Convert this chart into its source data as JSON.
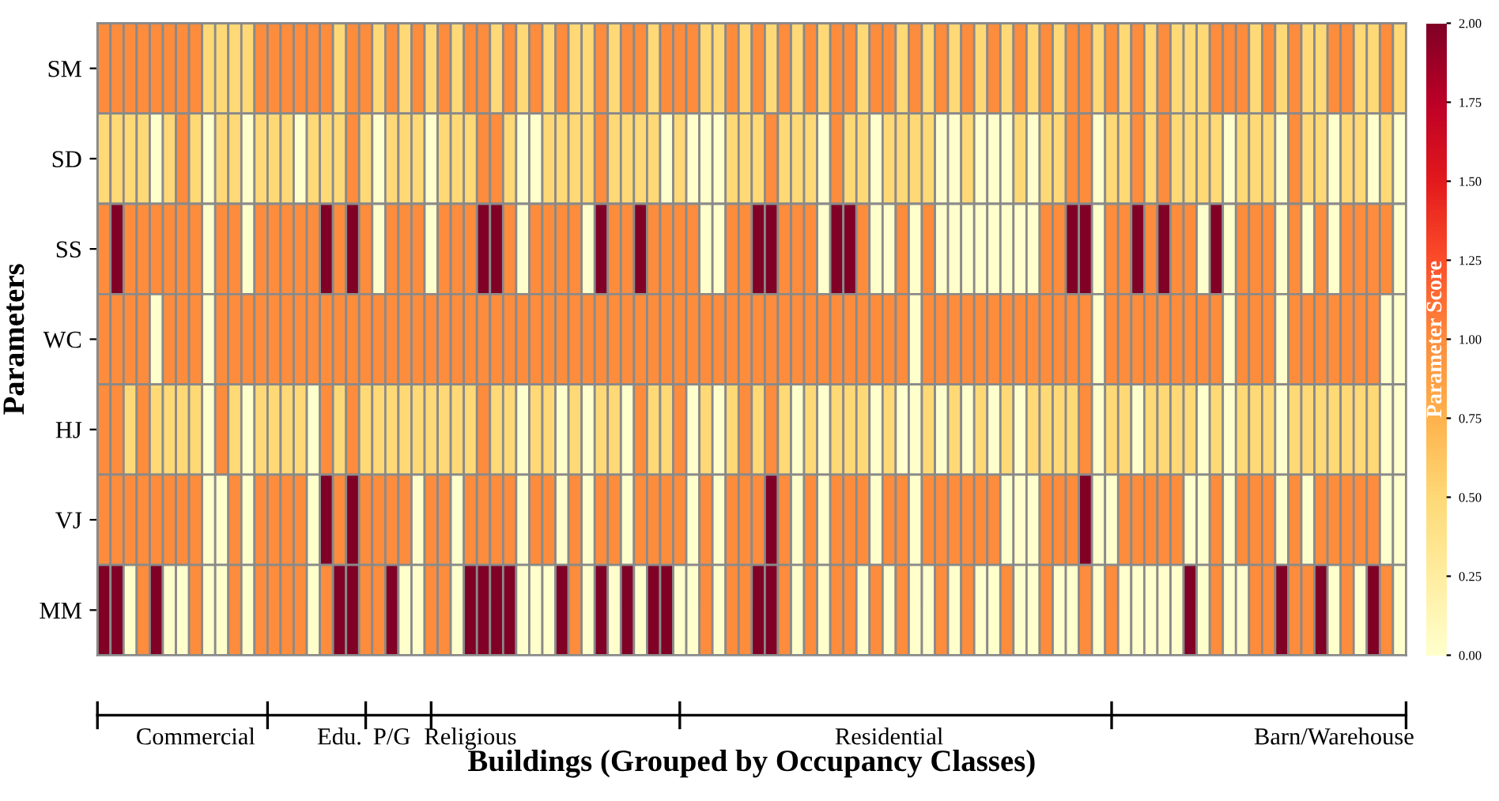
{
  "chart_data": {
    "type": "heatmap",
    "xlabel": "Buildings (Grouped by Occupancy Classes)",
    "ylabel": "Parameters",
    "clabel": "Parameter Score",
    "categories": [
      null,
      null,
      null,
      null,
      null,
      null,
      null,
      "Commercial",
      null,
      null,
      null,
      null,
      null,
      null,
      null,
      null,
      null,
      null,
      "Edu.",
      null,
      null,
      null,
      "P/G",
      null,
      null,
      null,
      null,
      null,
      "Religious",
      null,
      null,
      null,
      null,
      null,
      null,
      null,
      null,
      null,
      null,
      null,
      null,
      null,
      null,
      null,
      null,
      null,
      null,
      null,
      null,
      null,
      null,
      null,
      null,
      null,
      null,
      null,
      null,
      null,
      null,
      null,
      "Residential",
      null,
      null,
      null,
      null,
      null,
      null,
      null,
      null,
      null,
      null,
      null,
      null,
      null,
      null,
      null,
      null,
      null,
      null,
      null,
      null,
      null,
      null,
      null,
      null,
      null,
      null,
      null,
      null,
      null,
      null,
      null,
      null,
      null,
      "Barn/Warehouse",
      null,
      null,
      null,
      null,
      null
    ],
    "y_categories": [
      "SM",
      "SD",
      "SS",
      "WC",
      "HJ",
      "VJ",
      "MM"
    ],
    "cells": [
      [
        1,
        1,
        1,
        1,
        1,
        1,
        1,
        1,
        0.5,
        0.5,
        0.5,
        0.5,
        1,
        1,
        1,
        1,
        1,
        1,
        0.5,
        1,
        1,
        0.5,
        1,
        0.5,
        1,
        0.5,
        1,
        0.5,
        1,
        1,
        0.5,
        1,
        0.5,
        1,
        0.5,
        1,
        0.5,
        0.5,
        1,
        0.5,
        1,
        1,
        0.5,
        1,
        1,
        1,
        0.5,
        0.5,
        1,
        0.5,
        1,
        0.5,
        1,
        0.5,
        1,
        0.5,
        1,
        1,
        0.5,
        1,
        1,
        0.5,
        1,
        0.5,
        1,
        0.5,
        1,
        0.5,
        1,
        0.5,
        1,
        0.5,
        1,
        0.5,
        1,
        1,
        0.5,
        1,
        0.5,
        1,
        0.5,
        1,
        0.5,
        0.5,
        0.5,
        1,
        1,
        1,
        0.5,
        1,
        0.5,
        1,
        0.5,
        0.5,
        1,
        1,
        0.5,
        0.5,
        1,
        0.5
      ],
      [
        0.5,
        0.5,
        0.5,
        0.5,
        0,
        0.5,
        1,
        0.5,
        0,
        0.5,
        0.5,
        0,
        0.5,
        0.5,
        0.5,
        0,
        0.5,
        0.5,
        0.5,
        1,
        0.5,
        0,
        0.5,
        0.5,
        0.5,
        0,
        0.5,
        0.5,
        0.5,
        1,
        1,
        0.5,
        0,
        0,
        0.5,
        0.5,
        0.5,
        0.5,
        1,
        0.5,
        0.5,
        0.5,
        0.5,
        0,
        0.5,
        0,
        0,
        0,
        0.5,
        0.5,
        0.5,
        1,
        0.5,
        0.5,
        0.5,
        0,
        1,
        0.5,
        0.5,
        0,
        0.5,
        0.5,
        0.5,
        0.5,
        0,
        0,
        0.5,
        0,
        0,
        0,
        0.5,
        0,
        0.5,
        0.5,
        1,
        1,
        0,
        0.5,
        0.5,
        1,
        0.5,
        1,
        0.5,
        0.5,
        0.5,
        0.5,
        0,
        0.5,
        0.5,
        0.5,
        0,
        1,
        0.5,
        0.5,
        0,
        0.5,
        0.5,
        0,
        0.5,
        0
      ],
      [
        1,
        2,
        1,
        1,
        1,
        1,
        1,
        1,
        0,
        1,
        1,
        0,
        1,
        1,
        1,
        1,
        1,
        2,
        1,
        2,
        1,
        0,
        1,
        1,
        1,
        0,
        1,
        1,
        1,
        2,
        2,
        1,
        0,
        1,
        1,
        1,
        1,
        0,
        2,
        1,
        1,
        2,
        1,
        1,
        1,
        1,
        0,
        0,
        1,
        1,
        2,
        2,
        1,
        1,
        1,
        0,
        2,
        2,
        1,
        0,
        0,
        1,
        0,
        1,
        0,
        0,
        0,
        0,
        0,
        0,
        0,
        0,
        1,
        1,
        2,
        2,
        0,
        1,
        1,
        2,
        1,
        2,
        1,
        1,
        0,
        2,
        0,
        1,
        1,
        1,
        0,
        1,
        0,
        1,
        0,
        1,
        1,
        1,
        1,
        0
      ],
      [
        1,
        1,
        1,
        1,
        0,
        1,
        1,
        1,
        0,
        1,
        1,
        1,
        1,
        1,
        1,
        1,
        1,
        1,
        1,
        1,
        1,
        1,
        1,
        1,
        1,
        1,
        1,
        1,
        1,
        1,
        1,
        1,
        1,
        1,
        1,
        1,
        1,
        1,
        1,
        1,
        1,
        1,
        1,
        1,
        1,
        1,
        1,
        1,
        1,
        1,
        1,
        1,
        1,
        1,
        1,
        1,
        1,
        1,
        1,
        1,
        1,
        1,
        0,
        1,
        1,
        1,
        1,
        1,
        1,
        1,
        1,
        1,
        1,
        1,
        1,
        1,
        0,
        1,
        1,
        1,
        1,
        1,
        1,
        1,
        1,
        1,
        0,
        1,
        1,
        1,
        0,
        1,
        1,
        1,
        1,
        1,
        1,
        1,
        0,
        0
      ],
      [
        1,
        1,
        0.5,
        1,
        0.5,
        0.5,
        0.5,
        0.5,
        0,
        1,
        0.5,
        0,
        0.5,
        0.5,
        0.5,
        0.5,
        0,
        1,
        0.5,
        1,
        0.5,
        0.5,
        0.5,
        0.5,
        0.5,
        0.5,
        0.5,
        0.5,
        0.5,
        1,
        0.5,
        0.5,
        0,
        0.5,
        0.5,
        0,
        0.5,
        0,
        0.5,
        0.5,
        0,
        1,
        0.5,
        0.5,
        1,
        0,
        0.5,
        0,
        0.5,
        1,
        0.5,
        1,
        0.5,
        0,
        0.5,
        0,
        0.5,
        0.5,
        0.5,
        0,
        0.5,
        0,
        0,
        0.5,
        0,
        0.5,
        0,
        0.5,
        0,
        0.5,
        0,
        0.5,
        0.5,
        0.5,
        0.5,
        1,
        0,
        0.5,
        0.5,
        0,
        0.5,
        0.5,
        0.5,
        0.5,
        0,
        0.5,
        0,
        0.5,
        0.5,
        0.5,
        0,
        0.5,
        0.5,
        0.5,
        0.5,
        0.5,
        0.5,
        0.5,
        0,
        0
      ],
      [
        1,
        1,
        1,
        1,
        1,
        1,
        1,
        1,
        0,
        0,
        1,
        0,
        1,
        1,
        1,
        1,
        0,
        2,
        1,
        2,
        1,
        1,
        1,
        1,
        0,
        1,
        1,
        0,
        1,
        1,
        1,
        1,
        0,
        1,
        1,
        0,
        1,
        0,
        1,
        1,
        0,
        1,
        1,
        1,
        1,
        0,
        1,
        0,
        1,
        1,
        1,
        2,
        1,
        0,
        1,
        0,
        1,
        1,
        1,
        0,
        1,
        1,
        0,
        1,
        1,
        1,
        1,
        1,
        1,
        0,
        0,
        0,
        1,
        1,
        1,
        2,
        0,
        0,
        1,
        1,
        1,
        1,
        1,
        0,
        0,
        1,
        0,
        1,
        1,
        1,
        0,
        1,
        0,
        1,
        1,
        1,
        1,
        1,
        0,
        0
      ],
      [
        2,
        2,
        0,
        1,
        2,
        0,
        0,
        1,
        0,
        0,
        1,
        0,
        1,
        1,
        1,
        1,
        0,
        1,
        2,
        2,
        1,
        1,
        2,
        0,
        0,
        1,
        1,
        0,
        2,
        2,
        2,
        2,
        0,
        0,
        0,
        2,
        1,
        0,
        2,
        0,
        2,
        0,
        2,
        2,
        0,
        0,
        1,
        0,
        1,
        1,
        2,
        2,
        1,
        0,
        1,
        0,
        1,
        1,
        0,
        1,
        0,
        1,
        0,
        0,
        1,
        0,
        1,
        0,
        0,
        1,
        0,
        0,
        1,
        0,
        0,
        1,
        0,
        1,
        0,
        0,
        0,
        0,
        0,
        2,
        0,
        1,
        0,
        0,
        1,
        1,
        2,
        1,
        1,
        2,
        0,
        1,
        0,
        2,
        1,
        0
      ]
    ],
    "clim": [
      0,
      2
    ],
    "cticks": [
      {
        "value": 0,
        "label": "0.00"
      },
      {
        "value": 0.25,
        "label": "0.25"
      },
      {
        "value": 0.5,
        "label": "0.50"
      },
      {
        "value": 0.75,
        "label": "0.75"
      },
      {
        "value": 1,
        "label": "1.00"
      },
      {
        "value": 1.25,
        "label": "1.25"
      },
      {
        "value": 1.5,
        "label": "1.50"
      },
      {
        "value": 1.75,
        "label": "1.75"
      },
      {
        "value": 2,
        "label": "2.00"
      }
    ]
  }
}
